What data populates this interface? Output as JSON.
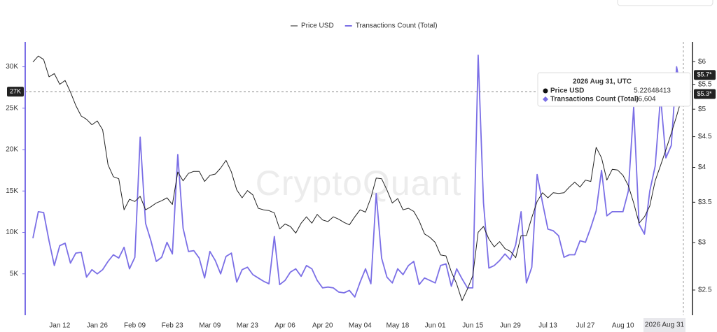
{
  "chart_data": {
    "type": "line",
    "legend": "top",
    "watermark": "CryptoQuant",
    "categories": [
      null,
      null,
      null,
      null,
      null,
      "Jan 12",
      null,
      null,
      null,
      null,
      null,
      null,
      "Jan 26",
      null,
      null,
      null,
      null,
      null,
      null,
      "Feb 09",
      null,
      null,
      null,
      null,
      null,
      null,
      "Feb 23",
      null,
      null,
      null,
      null,
      null,
      null,
      "Mar 09",
      null,
      null,
      null,
      null,
      null,
      null,
      "Mar 23",
      null,
      null,
      null,
      null,
      null,
      null,
      "Apr 06",
      null,
      null,
      null,
      null,
      null,
      null,
      "Apr 20",
      null,
      null,
      null,
      null,
      null,
      null,
      "May 04",
      null,
      null,
      null,
      null,
      null,
      null,
      "May 18",
      null,
      null,
      null,
      null,
      null,
      null,
      "Jun 01",
      null,
      null,
      null,
      null,
      null,
      null,
      "Jun 15",
      null,
      null,
      null,
      null,
      null,
      null,
      "Jun 29",
      null,
      null,
      null,
      null,
      null,
      null,
      "Jul 13",
      null,
      null,
      null,
      null,
      null,
      null,
      "Jul 27",
      null,
      null,
      null,
      null,
      null,
      null,
      "Aug 10",
      null,
      null,
      null,
      null,
      null,
      null,
      null,
      null,
      null,
      null,
      "2026 Aug 31"
    ],
    "series": [
      {
        "name": "Price USD",
        "color": "#222222",
        "axis": "y2",
        "values": [
          5.99,
          6.13,
          6.05,
          5.66,
          5.73,
          5.5,
          5.58,
          5.34,
          5.07,
          4.87,
          4.81,
          4.71,
          4.78,
          4.62,
          4.04,
          3.86,
          3.83,
          3.4,
          3.54,
          3.51,
          3.58,
          3.4,
          3.44,
          3.49,
          3.52,
          3.56,
          3.47,
          3.93,
          3.8,
          3.91,
          3.94,
          3.94,
          3.79,
          3.88,
          3.9,
          3.99,
          4.11,
          3.93,
          3.67,
          3.56,
          3.66,
          3.6,
          3.42,
          3.4,
          3.39,
          3.36,
          3.16,
          3.22,
          3.19,
          3.11,
          3.23,
          3.31,
          3.23,
          3.34,
          3.27,
          3.25,
          3.31,
          3.28,
          3.24,
          3.21,
          3.31,
          3.4,
          3.37,
          3.56,
          3.84,
          3.83,
          3.67,
          3.49,
          3.55,
          3.4,
          3.42,
          3.38,
          3.26,
          3.1,
          3.06,
          3,
          2.86,
          2.85,
          2.68,
          2.56,
          2.4,
          2.51,
          2.64,
          3.12,
          3.19,
          3.04,
          2.95,
          3.01,
          2.93,
          2.9,
          2.83,
          3.08,
          3.08,
          3.3,
          3.51,
          3.63,
          3.56,
          3.63,
          3.62,
          3.63,
          3.71,
          3.78,
          3.71,
          3.81,
          3.79,
          4.32,
          4.15,
          3.81,
          3.97,
          3.96,
          3.88,
          3.73,
          3.49,
          3.23,
          3.31,
          3.45,
          3.8,
          4.03,
          4.28,
          4.56,
          4.87,
          5.22648413
        ]
      },
      {
        "name": "Transactions Count (Total)",
        "color": "#7b6fe6",
        "axis": "y",
        "values": [
          9300,
          12500,
          12400,
          9000,
          6000,
          8400,
          8700,
          6300,
          7500,
          7600,
          4600,
          5500,
          5000,
          5500,
          6500,
          7300,
          6900,
          8200,
          5600,
          7000,
          21500,
          11100,
          9000,
          6500,
          7000,
          8800,
          7400,
          19400,
          10500,
          7700,
          7800,
          6900,
          4500,
          7700,
          6600,
          5000,
          7100,
          7500,
          4000,
          5500,
          5800,
          4900,
          4500,
          4100,
          3800,
          9500,
          3700,
          4200,
          5200,
          5600,
          4700,
          6000,
          5600,
          4200,
          3300,
          3400,
          3300,
          2800,
          2700,
          3000,
          2200,
          4000,
          5600,
          3800,
          14700,
          6900,
          4600,
          3900,
          5600,
          4900,
          6000,
          6500,
          3700,
          4500,
          4200,
          3900,
          6000,
          6200,
          3500,
          5600,
          4400,
          3300,
          3300,
          31400,
          13600,
          5700,
          6000,
          6600,
          7400,
          6700,
          8500,
          12500,
          3900,
          5800,
          17000,
          13600,
          10400,
          10200,
          9600,
          7000,
          7300,
          7300,
          9000,
          8800,
          10600,
          12600,
          17500,
          12000,
          12500,
          12500,
          12500,
          15000,
          25100,
          11000,
          9800,
          15000,
          18000,
          26400,
          19000,
          20500,
          30000,
          26604
        ]
      }
    ],
    "ylim": [
      0,
      33000
    ],
    "yticks": [
      {
        "value": 5000,
        "label": "5K"
      },
      {
        "value": 10000,
        "label": "10K"
      },
      {
        "value": 15000,
        "label": "15K"
      },
      {
        "value": 20000,
        "label": "20K"
      },
      {
        "value": 25000,
        "label": "25K"
      },
      {
        "value": 30000,
        "label": "30K"
      }
    ],
    "y2lim": [
      2.27,
      6.47
    ],
    "y2_log": true,
    "y2ticks": [
      {
        "value": 2.5,
        "label": "$2.5"
      },
      {
        "value": 3,
        "label": "$3"
      },
      {
        "value": 3.5,
        "label": "$3.5"
      },
      {
        "value": 4,
        "label": "$4"
      },
      {
        "value": 4.5,
        "label": "$4.5"
      },
      {
        "value": 5,
        "label": "$5"
      },
      {
        "value": 5.5,
        "label": "$5.5"
      },
      {
        "value": 6,
        "label": "$6"
      }
    ],
    "crosshair": {
      "value": 27000,
      "label": "27K"
    },
    "y2_badges": [
      {
        "value": 5.7,
        "label": "$5.7*"
      },
      {
        "value": 5.3,
        "label": "$5.3*"
      }
    ],
    "tooltip": {
      "title": "2026 Aug 31, UTC",
      "count_label": "26,604"
    }
  }
}
